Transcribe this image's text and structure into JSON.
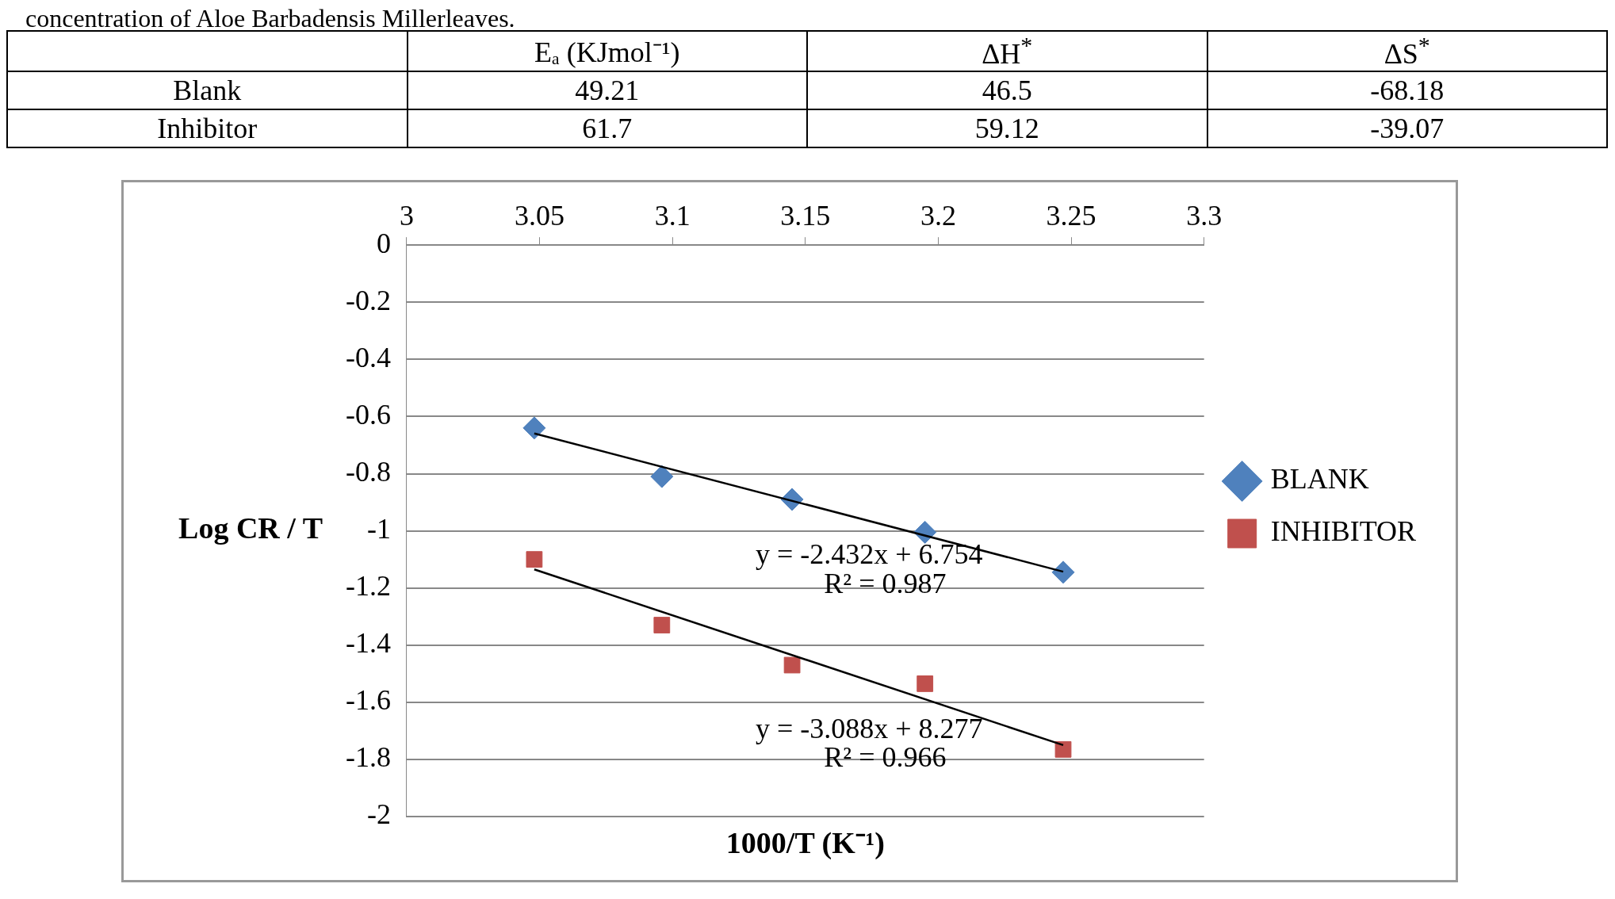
{
  "chart_data": [
    {
      "type": "other",
      "title": "concentration of Aloe Barbadensis Millerleaves.",
      "categories": [
        null,
        "Eₐ (KJmol⁻¹)",
        "ΔH$^{*}$",
        "ΔS$^{*}$"
      ],
      "y_categories": [
        "Blank",
        "Inhibitor"
      ],
      "cell_labels": [
        [
          "49.21",
          "46.5",
          "-68.18"
        ],
        [
          "61.7",
          "59.12",
          "-39.07"
        ]
      ]
    },
    {
      "type": "scatter",
      "xlabel": "1000/T (K⁻¹)",
      "ylabel": "Log CR / T",
      "xlim": [
        3,
        3.3
      ],
      "xticks": [
        3,
        3.05,
        3.1,
        3.15,
        3.2,
        3.25,
        3.3
      ],
      "ylim": [
        -2,
        0
      ],
      "yticks": [
        -2,
        -1.8,
        -1.6,
        -1.4,
        -1.2,
        -1,
        -0.8,
        -0.6,
        -0.4,
        -0.2,
        0
      ],
      "grid": "y",
      "legend": "right",
      "series": [
        {
          "name": "BLANK",
          "color": "#4f81bd",
          "marker": "diamond",
          "x": [
            3.048,
            3.096,
            3.145,
            3.195,
            3.247
          ],
          "values": [
            -0.64,
            -0.81,
            -0.89,
            -1.005,
            -1.145
          ]
        },
        {
          "name": "INHIBITOR",
          "color": "#c0504d",
          "marker": "square",
          "x": [
            3.048,
            3.096,
            3.145,
            3.195,
            3.247
          ],
          "values": [
            -1.1,
            -1.33,
            -1.47,
            -1.535,
            -1.765
          ]
        },
        {
          "type": "line",
          "color": "#000000",
          "marker": "none",
          "x": [
            3.048,
            3.247
          ],
          "values": [
            -0.659,
            -1.143
          ]
        },
        {
          "type": "line",
          "color": "#000000",
          "marker": "none",
          "x": [
            3.048,
            3.247
          ],
          "values": [
            -1.135,
            -1.75
          ]
        }
      ],
      "annotations": [
        "y = -2.432x + 6.754",
        "R² = 0.987",
        "y = -3.088x + 8.277",
        "R² = 0.966"
      ]
    }
  ]
}
